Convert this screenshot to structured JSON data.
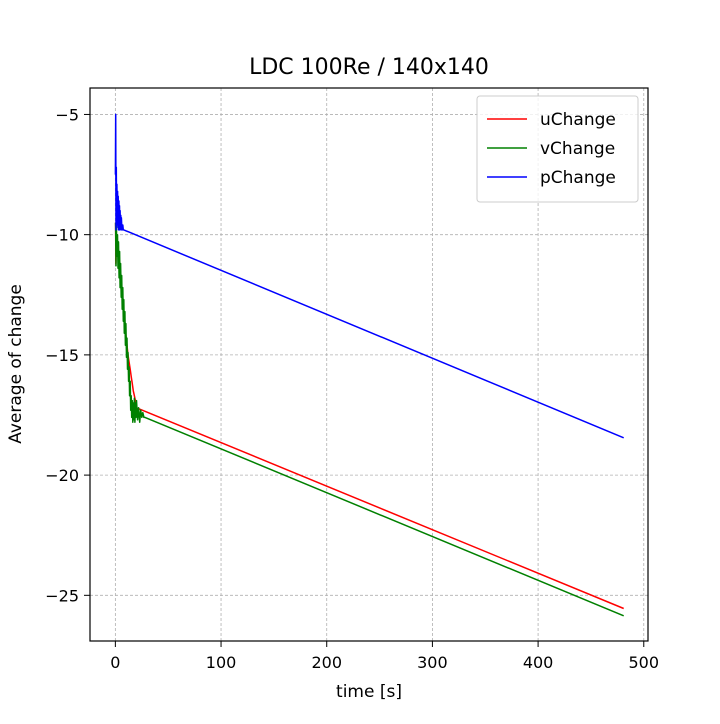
{
  "chart_data": {
    "type": "line",
    "title": "LDC 100Re / 140x140",
    "xlabel": "time [s]",
    "ylabel": "Average of change",
    "xlim": [
      -24,
      504
    ],
    "ylim": [
      -26.9,
      -3.9
    ],
    "xticks": [
      0,
      100,
      200,
      300,
      400,
      500
    ],
    "yticks": [
      -25,
      -20,
      -15,
      -10,
      -5
    ],
    "xtick_labels": [
      "0",
      "100",
      "200",
      "300",
      "400",
      "500"
    ],
    "ytick_labels": [
      "−25",
      "−20",
      "−15",
      "−10",
      "−5"
    ],
    "grid": true,
    "legend_position": "top-right",
    "series": [
      {
        "name": "uChange",
        "color": "#ff0000",
        "x": [
          0.2,
          0.5,
          1,
          2,
          3,
          4,
          5,
          6,
          7,
          8,
          9,
          10,
          11,
          12,
          13,
          14,
          15,
          16,
          17,
          18,
          19,
          20,
          481
        ],
        "y": [
          -9.5,
          -11.2,
          -10.0,
          -10.6,
          -11.0,
          -11.3,
          -11.8,
          -12.3,
          -12.8,
          -13.3,
          -13.8,
          -14.2,
          -14.6,
          -15.0,
          -15.3,
          -15.6,
          -15.9,
          -16.2,
          -16.5,
          -16.7,
          -16.9,
          -17.2,
          -25.55
        ]
      },
      {
        "name": "vChange",
        "color": "#008000",
        "x": [
          0.2,
          0.6,
          1.0,
          1.5,
          2,
          2.5,
          3,
          3.5,
          4,
          4.5,
          5,
          5.5,
          6,
          6.5,
          7,
          7.5,
          8,
          8.5,
          9,
          9.5,
          10,
          10.5,
          11,
          11.5,
          12,
          12.5,
          13,
          13.5,
          14,
          14.5,
          15,
          15.5,
          16,
          16.5,
          17,
          17.5,
          18,
          18.5,
          19,
          19.5,
          20,
          21,
          22,
          23,
          24,
          25,
          26,
          27,
          28,
          481
        ],
        "y": [
          -9.5,
          -11.3,
          -9.6,
          -10.9,
          -10.0,
          -11.4,
          -10.3,
          -11.8,
          -10.7,
          -12.2,
          -11.2,
          -12.6,
          -11.7,
          -13.1,
          -12.2,
          -13.6,
          -12.7,
          -14.1,
          -13.2,
          -14.6,
          -13.7,
          -15.1,
          -14.3,
          -15.6,
          -14.9,
          -16.1,
          -15.5,
          -16.7,
          -16.1,
          -17.3,
          -16.7,
          -17.6,
          -16.9,
          -17.8,
          -17.0,
          -17.7,
          -16.8,
          -17.8,
          -17.0,
          -17.6,
          -16.9,
          -17.7,
          -17.2,
          -17.8,
          -17.3,
          -17.6,
          -17.4,
          -17.6,
          -17.6,
          -25.85
        ]
      },
      {
        "name": "pChange",
        "color": "#0000ff",
        "x": [
          0.0,
          0.3,
          0.6,
          0.9,
          1.2,
          1.5,
          1.8,
          2.1,
          2.4,
          2.7,
          3.0,
          3.3,
          3.6,
          3.9,
          4.2,
          4.5,
          4.8,
          5.1,
          5.4,
          5.7,
          6.0,
          6.5,
          7.0,
          7.5,
          8.0,
          481
        ],
        "y": [
          -7.5,
          -5.0,
          -9.8,
          -7.2,
          -9.5,
          -7.9,
          -9.6,
          -8.2,
          -9.7,
          -8.4,
          -9.8,
          -8.6,
          -9.8,
          -8.8,
          -9.8,
          -9.0,
          -9.7,
          -9.2,
          -9.8,
          -9.3,
          -9.6,
          -9.8,
          -9.6,
          -9.8,
          -9.8,
          -18.45
        ]
      }
    ]
  }
}
